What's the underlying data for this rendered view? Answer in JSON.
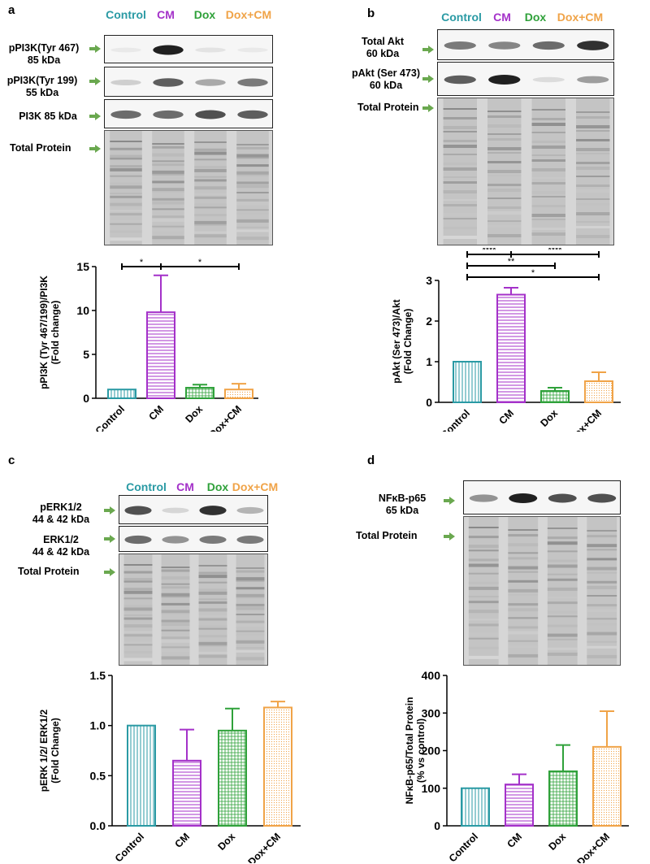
{
  "colors": {
    "control": "#2a9aa4",
    "cm": "#a431c9",
    "dox": "#2fa13a",
    "doxcm": "#f0a347",
    "arrow": "#6aa84f"
  },
  "panels": {
    "a": {
      "letter": "a",
      "lanes": [
        "Control",
        "CM",
        "Dox",
        "Dox+CM"
      ],
      "blot_rows": [
        {
          "label_lines": [
            "pPI3K(Tyr 467)",
            "85 kDa"
          ],
          "band_intensity": [
            0.1,
            1.0,
            0.15,
            0.1
          ]
        },
        {
          "label_lines": [
            "pPI3K(Tyr 199)",
            "55 kDa"
          ],
          "band_intensity": [
            0.3,
            0.8,
            0.5,
            0.7
          ]
        },
        {
          "label_lines": [
            "PI3K 85 kDa"
          ],
          "band_intensity": [
            0.75,
            0.75,
            0.85,
            0.8
          ]
        }
      ],
      "total_protein_label": "Total Protein"
    },
    "b": {
      "letter": "b",
      "lanes": [
        "Control",
        "CM",
        "Dox",
        "Dox+CM"
      ],
      "blot_rows": [
        {
          "label_lines": [
            "Total Akt",
            "60 kDa"
          ],
          "band_intensity": [
            0.7,
            0.65,
            0.75,
            0.95
          ]
        },
        {
          "label_lines": [
            "pAkt (Ser 473)",
            "60 kDa"
          ],
          "band_intensity": [
            0.8,
            1.0,
            0.2,
            0.55
          ]
        }
      ],
      "total_protein_label": "Total Protein"
    },
    "c": {
      "letter": "c",
      "lanes": [
        "Control",
        "CM",
        "Dox",
        "Dox+CM"
      ],
      "blot_rows": [
        {
          "label_lines": [
            "pERK1/2",
            "44 & 42 kDa"
          ],
          "band_intensity": [
            0.85,
            0.25,
            0.95,
            0.45
          ]
        },
        {
          "label_lines": [
            "ERK1/2",
            "44 & 42 kDa"
          ],
          "band_intensity": [
            0.75,
            0.6,
            0.7,
            0.7
          ]
        }
      ],
      "total_protein_label": "Total Protein"
    },
    "d": {
      "letter": "d",
      "lanes": [],
      "blot_rows": [
        {
          "label_lines": [
            "NFκB-p65",
            "65 kDa"
          ],
          "band_intensity": [
            0.6,
            1.0,
            0.85,
            0.85
          ]
        }
      ],
      "total_protein_label": "Total Protein"
    }
  },
  "chart_data": [
    {
      "panel": "a",
      "type": "bar",
      "categories": [
        "Control",
        "CM",
        "Dox",
        "Dox+CM"
      ],
      "values": [
        1.0,
        9.8,
        1.2,
        1.0
      ],
      "errors": [
        0,
        4.2,
        0.35,
        0.65
      ],
      "ylabel_lines": [
        "pPI3K (Tyr 467/199)/PI3K",
        "(Fold change)"
      ],
      "ylim": [
        0,
        15
      ],
      "yticks": [
        "0",
        "5",
        "10",
        "15"
      ],
      "significance": [
        {
          "from": 0,
          "to": 1,
          "label": "*"
        },
        {
          "from": 1,
          "to": 3,
          "label": "*"
        }
      ]
    },
    {
      "panel": "b",
      "type": "bar",
      "categories": [
        "Control",
        "CM",
        "Dox",
        "Dox+CM"
      ],
      "values": [
        1.0,
        2.65,
        0.28,
        0.52
      ],
      "errors": [
        0,
        0.17,
        0.08,
        0.22
      ],
      "ylabel_lines": [
        "pAkt (Ser 473)/Akt",
        "(Fold Change)"
      ],
      "ylim": [
        0,
        3
      ],
      "yticks": [
        "0",
        "1",
        "2",
        "3"
      ],
      "significance": [
        {
          "from": 0,
          "to": 1,
          "label": "****"
        },
        {
          "from": 1,
          "to": 3,
          "label": "****"
        },
        {
          "from": 0,
          "to": 2,
          "label": "**"
        },
        {
          "from": 0,
          "to": 3,
          "label": "*"
        }
      ]
    },
    {
      "panel": "c",
      "type": "bar",
      "categories": [
        "Control",
        "CM",
        "Dox",
        "Dox+CM"
      ],
      "values": [
        1.0,
        0.65,
        0.95,
        1.18
      ],
      "errors": [
        0,
        0.31,
        0.22,
        0.06
      ],
      "ylabel_lines": [
        "pERK 1/2/ ERK1/2",
        "(Fold Change)"
      ],
      "ylim": [
        0,
        1.5
      ],
      "yticks": [
        "0.0",
        "0.5",
        "1.0",
        "1.5"
      ],
      "significance": []
    },
    {
      "panel": "d",
      "type": "bar",
      "categories": [
        "Control",
        "CM",
        "Dox",
        "Dox+CM"
      ],
      "values": [
        100,
        110,
        145,
        210
      ],
      "errors": [
        0,
        27,
        70,
        95
      ],
      "ylabel_lines": [
        "NFκB-p65/Total Protein",
        "(% vs control)"
      ],
      "ylim": [
        0,
        400
      ],
      "yticks": [
        "0",
        "100",
        "200",
        "300",
        "400"
      ],
      "significance": []
    }
  ]
}
